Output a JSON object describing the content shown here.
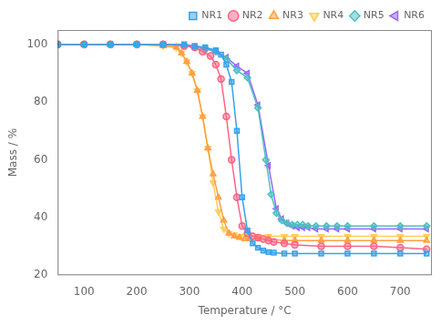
{
  "chart_data": {
    "type": "line",
    "xlabel": "Temperature / °C",
    "ylabel": "Mass / %",
    "xlim": [
      50,
      760
    ],
    "ylim": [
      20,
      105
    ],
    "xticks": [
      100,
      200,
      300,
      400,
      500,
      600,
      700
    ],
    "yticks": [
      20,
      40,
      60,
      80,
      100
    ],
    "grid": false,
    "legend": "upper right",
    "series": [
      {
        "name": "NR1",
        "marker": "square",
        "x": [
          50,
          100,
          150,
          200,
          250,
          290,
          310,
          330,
          350,
          360,
          370,
          380,
          390,
          400,
          410,
          420,
          430,
          440,
          450,
          460,
          480,
          500,
          550,
          600,
          650,
          700,
          750
        ],
        "values": [
          100,
          100,
          100,
          100,
          100,
          100,
          99.5,
          99,
          98,
          96.5,
          93,
          87,
          70,
          47,
          35.5,
          31,
          29.5,
          28.5,
          28,
          27.8,
          27.5,
          27.5,
          27.5,
          27.5,
          27.5,
          27.5,
          27.5
        ]
      },
      {
        "name": "NR2",
        "marker": "circle",
        "x": [
          50,
          100,
          150,
          200,
          250,
          290,
          310,
          325,
          340,
          350,
          360,
          370,
          380,
          390,
          400,
          410,
          420,
          430,
          440,
          450,
          460,
          480,
          500,
          550,
          600,
          650,
          700,
          750
        ],
        "values": [
          100,
          100,
          100,
          100,
          100,
          99.5,
          99,
          97.5,
          96,
          93,
          88,
          75,
          60,
          47,
          37,
          34.5,
          33.5,
          33,
          32.5,
          32,
          31.5,
          31,
          30.5,
          30,
          30,
          30,
          29.5,
          29
        ]
      },
      {
        "name": "NR3",
        "marker": "triangle-up",
        "x": [
          50,
          100,
          150,
          200,
          250,
          275,
          285,
          295,
          305,
          315,
          325,
          335,
          345,
          355,
          365,
          375,
          385,
          395,
          405,
          415,
          430,
          450,
          480,
          500,
          550,
          600,
          650,
          700,
          750
        ],
        "values": [
          100,
          100,
          100,
          100,
          99.5,
          99,
          97,
          94,
          90,
          84,
          75,
          64,
          55,
          47,
          39,
          34.5,
          33.5,
          33,
          32.5,
          32.5,
          32.5,
          32.5,
          32,
          32,
          32,
          32,
          32,
          32,
          32
        ]
      },
      {
        "name": "NR4",
        "marker": "triangle-down",
        "x": [
          50,
          100,
          150,
          200,
          250,
          275,
          285,
          295,
          305,
          315,
          325,
          335,
          345,
          355,
          365,
          375,
          385,
          395,
          410,
          430,
          450,
          480,
          500,
          550,
          600,
          650,
          700,
          750
        ],
        "values": [
          100,
          100,
          100,
          100,
          99.5,
          99,
          97,
          94,
          90,
          84,
          75,
          64,
          52,
          42,
          36,
          34.5,
          34,
          33.5,
          33.5,
          33.5,
          33.5,
          33.5,
          33.5,
          33.5,
          33.5,
          33.5,
          33.5,
          33.5
        ]
      },
      {
        "name": "NR5",
        "marker": "diamond",
        "x": [
          50,
          100,
          150,
          200,
          250,
          290,
          310,
          330,
          350,
          370,
          390,
          410,
          430,
          445,
          455,
          465,
          475,
          485,
          495,
          505,
          515,
          525,
          540,
          560,
          580,
          600,
          650,
          700,
          750
        ],
        "values": [
          100,
          100,
          100,
          100,
          100,
          99.5,
          99,
          98.5,
          97.5,
          95,
          91,
          88.5,
          78,
          60,
          48,
          41.5,
          39,
          38,
          37.5,
          37.5,
          37.5,
          37,
          37,
          37,
          37,
          37,
          37,
          37,
          37
        ]
      },
      {
        "name": "NR6",
        "marker": "triangle-left",
        "x": [
          50,
          100,
          150,
          200,
          250,
          290,
          310,
          330,
          350,
          370,
          390,
          410,
          430,
          450,
          465,
          475,
          485,
          495,
          505,
          515,
          525,
          540,
          560,
          580,
          600,
          650,
          700,
          750
        ],
        "values": [
          100,
          100,
          100,
          100,
          100,
          99.5,
          99,
          98.5,
          97.5,
          95.5,
          92.5,
          90,
          79,
          58,
          43,
          39.5,
          38,
          37,
          36.5,
          36.5,
          36.5,
          36,
          36,
          36,
          36,
          36,
          36,
          36
        ]
      }
    ]
  }
}
